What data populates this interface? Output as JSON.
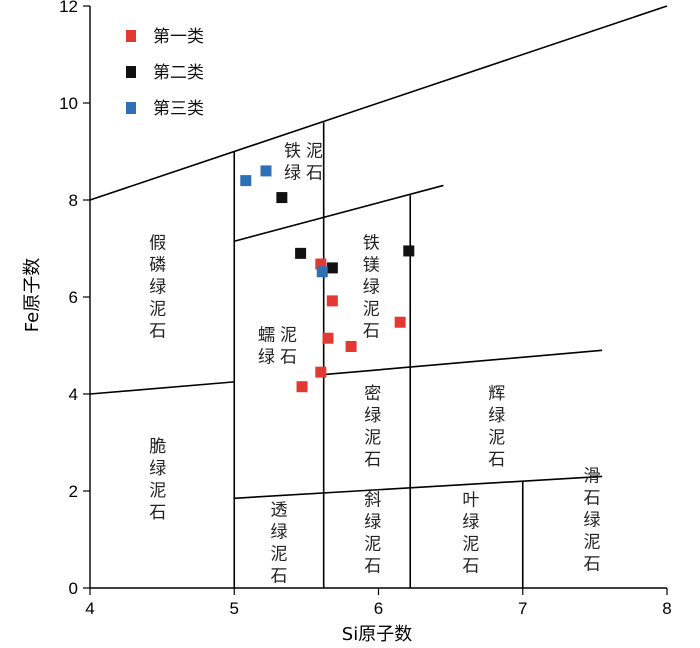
{
  "chart_data": {
    "type": "scatter",
    "title": "",
    "xlabel": "Si原子数",
    "ylabel": "Fe原子数",
    "xlim": [
      4,
      8
    ],
    "ylim": [
      0,
      12
    ],
    "xticks": [
      "4",
      "5",
      "6",
      "7",
      "8"
    ],
    "yticks": [
      "0",
      "2",
      "4",
      "6",
      "8",
      "10",
      "12"
    ],
    "grid": false,
    "legend_position": "top-left",
    "colors": {
      "第一类": "#e23a33",
      "第二类": "#111111",
      "第三类": "#2f6fb6"
    },
    "series": [
      {
        "name": "第一类",
        "points": [
          [
            5.47,
            4.15
          ],
          [
            5.6,
            4.45
          ],
          [
            5.65,
            5.15
          ],
          [
            5.81,
            4.98
          ],
          [
            5.68,
            5.92
          ],
          [
            6.15,
            5.48
          ],
          [
            5.6,
            6.68
          ]
        ]
      },
      {
        "name": "第二类",
        "points": [
          [
            5.33,
            8.05
          ],
          [
            5.46,
            6.9
          ],
          [
            5.68,
            6.6
          ],
          [
            6.21,
            6.95
          ]
        ]
      },
      {
        "name": "第三类",
        "points": [
          [
            5.08,
            8.4
          ],
          [
            5.22,
            8.6
          ],
          [
            5.61,
            6.52
          ]
        ]
      }
    ],
    "boundaries": [
      [
        [
          4,
          8.0
        ],
        [
          8,
          12.0
        ]
      ],
      [
        [
          5,
          7.15
        ],
        [
          6.45,
          8.3
        ]
      ],
      [
        [
          4,
          4.0
        ],
        [
          5,
          4.25
        ]
      ],
      [
        [
          5.62,
          4.4
        ],
        [
          7.55,
          4.9
        ]
      ],
      [
        [
          5,
          1.85
        ],
        [
          7.55,
          2.3
        ]
      ],
      [
        [
          5,
          9.0
        ],
        [
          5,
          0
        ]
      ],
      [
        [
          5.62,
          9.6
        ],
        [
          5.62,
          0
        ]
      ],
      [
        [
          6.22,
          8.1
        ],
        [
          6.22,
          0
        ]
      ],
      [
        [
          7.0,
          2.2
        ],
        [
          7.0,
          0
        ]
      ]
    ],
    "field_labels": [
      {
        "id": "fe-chlorite",
        "chars": [
          "铁",
          "绿",
          "泥",
          "石"
        ],
        "x": 5.48,
        "y": 8.9,
        "cols": 2
      },
      {
        "id": "fe-mg-chlorite",
        "chars": [
          "铁",
          "镁",
          "绿",
          "泥",
          "石"
        ],
        "x": 5.95,
        "y": 7.0,
        "cols": 1
      },
      {
        "id": "pseudothuringite",
        "chars": [
          "假",
          "磷",
          "绿",
          "泥",
          "石"
        ],
        "x": 4.47,
        "y": 7.0,
        "cols": 1
      },
      {
        "id": "ripidolite",
        "chars": [
          "蠕",
          "绿",
          "泥",
          "石"
        ],
        "x": 5.3,
        "y": 5.1,
        "cols": 2
      },
      {
        "id": "pycnochlorite",
        "chars": [
          "密",
          "绿",
          "泥",
          "石"
        ],
        "x": 5.96,
        "y": 3.9,
        "cols": 1
      },
      {
        "id": "diabantite",
        "chars": [
          "辉",
          "绿",
          "泥",
          "石"
        ],
        "x": 6.82,
        "y": 3.9,
        "cols": 1
      },
      {
        "id": "brunsvigite",
        "chars": [
          "脆",
          "绿",
          "泥",
          "石"
        ],
        "x": 4.47,
        "y": 2.8,
        "cols": 1
      },
      {
        "id": "clinochlore",
        "chars": [
          "斜",
          "绿",
          "泥",
          "石"
        ],
        "x": 5.96,
        "y": 1.7,
        "cols": 1
      },
      {
        "id": "penninite",
        "chars": [
          "透",
          "绿",
          "泥",
          "石"
        ],
        "x": 5.31,
        "y": 1.5,
        "cols": 1
      },
      {
        "id": "sheridanite",
        "chars": [
          "叶",
          "绿",
          "泥",
          "石"
        ],
        "x": 6.64,
        "y": 1.7,
        "cols": 1
      },
      {
        "id": "talc-chlorite",
        "chars": [
          "滑",
          "石",
          "绿",
          "泥",
          "石"
        ],
        "x": 7.48,
        "y": 2.2,
        "cols": 1
      }
    ]
  }
}
